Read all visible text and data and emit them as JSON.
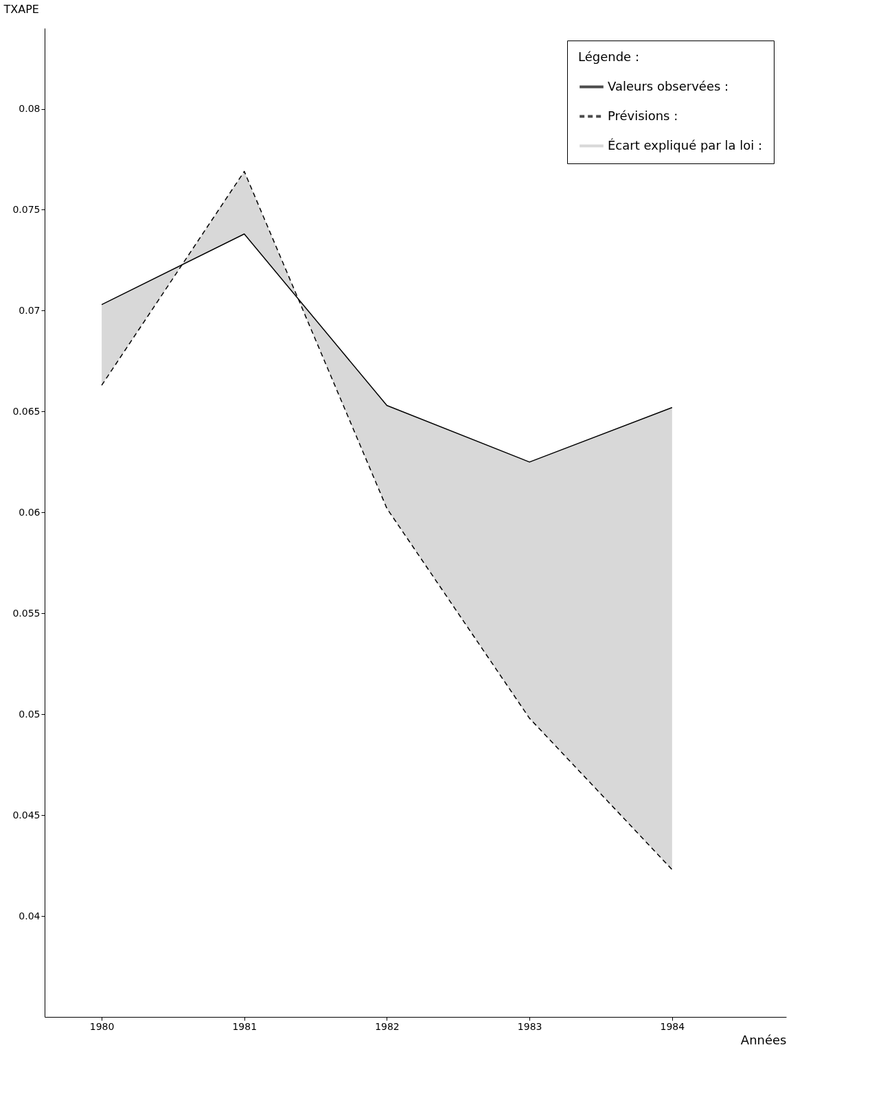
{
  "chart_data": {
    "type": "line",
    "xlabel": "Années",
    "ylabel": "TXAPE",
    "legend_title": "Légende :",
    "categories": [
      "1980",
      "1981",
      "1982",
      "1983",
      "1984"
    ],
    "series": [
      {
        "name": "Valeurs observées :",
        "color": "#000000",
        "line_style": "solid",
        "values": [
          0.0703,
          0.0738,
          0.0653,
          0.0625,
          0.0652
        ],
        "lower": [
          0.0663,
          0.0769,
          0.0602,
          0.0498,
          0.0423
        ],
        "upper": [
          0.0703,
          0.0738,
          0.0653,
          0.0625,
          0.0652
        ]
      },
      {
        "name": "Prévisions :",
        "color": "#000000",
        "line_style": "dashed",
        "values": [
          0.0663,
          0.0769,
          0.0602,
          0.0498,
          0.0423
        ]
      }
    ],
    "annotations": [
      "Écart expliqué par la loi :"
    ],
    "ylim": [
      0.035,
      0.084
    ],
    "yticks": [
      0.04,
      0.045,
      0.05,
      0.055,
      0.06,
      0.065,
      0.07,
      0.075,
      0.08
    ],
    "grid": false,
    "legend": "top right",
    "marker": "none"
  }
}
